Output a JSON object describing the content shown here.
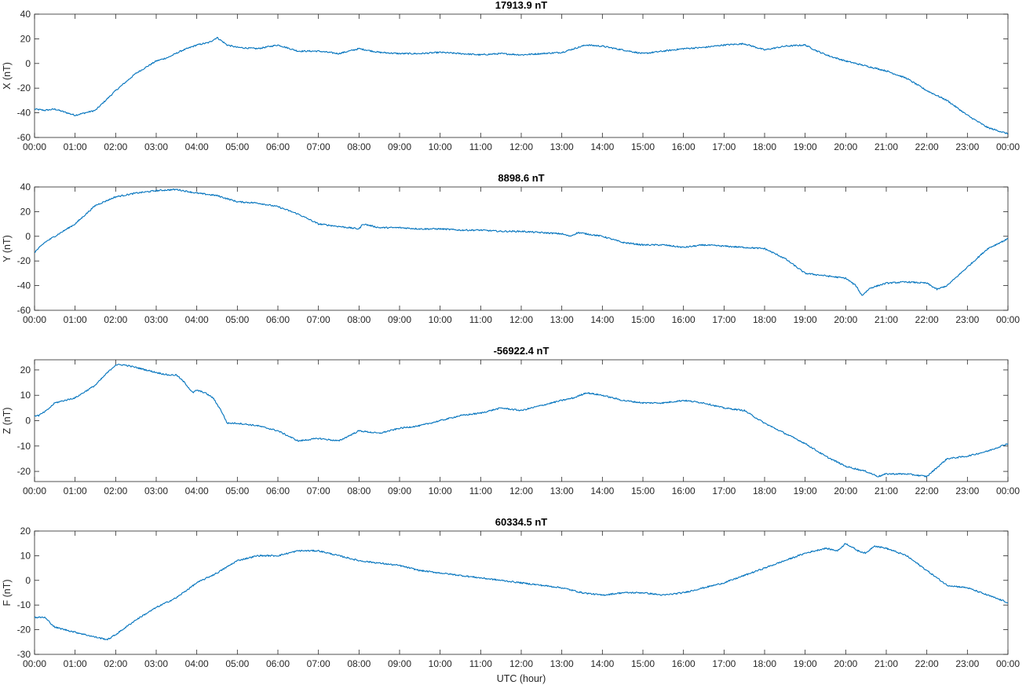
{
  "chart_data": [
    {
      "type": "line",
      "title": "17913.9 nT",
      "xlabel": "",
      "ylabel": "X (nT)",
      "ylim": [
        -60,
        40
      ],
      "yticks": [
        -60,
        -40,
        -20,
        0,
        20,
        40
      ],
      "xlim": [
        0,
        24
      ],
      "xticks": [
        "00:00",
        "01:00",
        "02:00",
        "03:00",
        "04:00",
        "05:00",
        "06:00",
        "07:00",
        "08:00",
        "09:00",
        "10:00",
        "11:00",
        "12:00",
        "13:00",
        "14:00",
        "15:00",
        "16:00",
        "17:00",
        "18:00",
        "19:00",
        "20:00",
        "21:00",
        "22:00",
        "23:00",
        "00:00"
      ],
      "grid": false,
      "color": "#0072BD",
      "series": [
        {
          "x": [
            0,
            0.25,
            0.5,
            1.0,
            1.5,
            2.0,
            2.5,
            3.0,
            3.3,
            3.6,
            4.0,
            4.3,
            4.5,
            4.75,
            5.0,
            5.5,
            6.0,
            6.5,
            7.0,
            7.5,
            8.0,
            8.5,
            9.0,
            9.5,
            10.0,
            10.5,
            11.0,
            11.5,
            12.0,
            12.5,
            13.0,
            13.3,
            13.6,
            14.0,
            14.5,
            15.0,
            15.5,
            16.0,
            16.5,
            17.0,
            17.5,
            18.0,
            18.5,
            19.0,
            19.3,
            19.6,
            20.0,
            20.5,
            21.0,
            21.5,
            22.0,
            22.5,
            23.0,
            23.5,
            24.0
          ],
          "y": [
            -37,
            -38,
            -37,
            -42,
            -38,
            -22,
            -8,
            2,
            5,
            10,
            15,
            17,
            21,
            15,
            13,
            12,
            15,
            10,
            10,
            8,
            12,
            9,
            8,
            8,
            9,
            8,
            7,
            8,
            7,
            8,
            9,
            12,
            15,
            14,
            11,
            8,
            10,
            12,
            13,
            15,
            16,
            11,
            14,
            15,
            10,
            6,
            2,
            -2,
            -6,
            -12,
            -22,
            -30,
            -42,
            -52,
            -57
          ]
        }
      ]
    },
    {
      "type": "line",
      "title": "8898.6 nT",
      "xlabel": "",
      "ylabel": "Y (nT)",
      "ylim": [
        -60,
        40
      ],
      "yticks": [
        -60,
        -40,
        -20,
        0,
        20,
        40
      ],
      "xlim": [
        0,
        24
      ],
      "xticks": [
        "00:00",
        "01:00",
        "02:00",
        "03:00",
        "04:00",
        "05:00",
        "06:00",
        "07:00",
        "08:00",
        "09:00",
        "10:00",
        "11:00",
        "12:00",
        "13:00",
        "14:00",
        "15:00",
        "16:00",
        "17:00",
        "18:00",
        "19:00",
        "20:00",
        "21:00",
        "22:00",
        "23:00",
        "00:00"
      ],
      "grid": false,
      "color": "#0072BD",
      "series": [
        {
          "x": [
            0,
            0.25,
            0.5,
            1.0,
            1.5,
            2.0,
            2.5,
            3.0,
            3.5,
            4.0,
            4.5,
            5.0,
            5.5,
            6.0,
            6.5,
            7.0,
            7.5,
            8.0,
            8.1,
            8.5,
            9.0,
            9.5,
            10.0,
            10.5,
            11.0,
            11.5,
            12.0,
            12.5,
            13.0,
            13.2,
            13.4,
            14.0,
            14.5,
            15.0,
            15.5,
            16.0,
            16.5,
            17.0,
            17.5,
            18.0,
            18.5,
            19.0,
            19.5,
            20.0,
            20.25,
            20.4,
            20.6,
            21.0,
            21.5,
            22.0,
            22.25,
            22.5,
            23.0,
            23.5,
            24.0
          ],
          "y": [
            -13,
            -5,
            0,
            10,
            25,
            32,
            35,
            37,
            38,
            35,
            33,
            28,
            27,
            24,
            18,
            10,
            8,
            6,
            10,
            7,
            7,
            6,
            6,
            5,
            5,
            4,
            4,
            3,
            2,
            0,
            3,
            0,
            -5,
            -7,
            -7,
            -9,
            -7,
            -8,
            -9,
            -10,
            -18,
            -30,
            -32,
            -34,
            -40,
            -48,
            -42,
            -38,
            -37,
            -38,
            -43,
            -40,
            -25,
            -10,
            -2
          ]
        }
      ]
    },
    {
      "type": "line",
      "title": "-56922.4 nT",
      "xlabel": "",
      "ylabel": "Z (nT)",
      "ylim": [
        -24,
        24
      ],
      "yticks": [
        -20,
        -10,
        0,
        10,
        20
      ],
      "xlim": [
        0,
        24
      ],
      "xticks": [
        "00:00",
        "01:00",
        "02:00",
        "03:00",
        "04:00",
        "05:00",
        "06:00",
        "07:00",
        "08:00",
        "09:00",
        "10:00",
        "11:00",
        "12:00",
        "13:00",
        "14:00",
        "15:00",
        "16:00",
        "17:00",
        "18:00",
        "19:00",
        "20:00",
        "21:00",
        "22:00",
        "23:00",
        "00:00"
      ],
      "grid": false,
      "color": "#0072BD",
      "series": [
        {
          "x": [
            0,
            0.1,
            0.3,
            0.5,
            1.0,
            1.5,
            1.8,
            2.0,
            2.2,
            2.5,
            3.0,
            3.3,
            3.5,
            3.7,
            3.9,
            4.0,
            4.2,
            4.4,
            4.6,
            4.75,
            5.0,
            5.5,
            6.0,
            6.5,
            7.0,
            7.5,
            8.0,
            8.5,
            9.0,
            9.5,
            10.0,
            10.5,
            11.0,
            11.5,
            12.0,
            12.5,
            13.0,
            13.3,
            13.6,
            14.0,
            14.5,
            15.0,
            15.5,
            16.0,
            16.5,
            17.0,
            17.5,
            18.0,
            18.5,
            19.0,
            19.5,
            20.0,
            20.5,
            20.8,
            21.0,
            21.5,
            22.0,
            22.5,
            23.0,
            23.5,
            24.0
          ],
          "y": [
            2,
            2,
            4,
            7,
            9,
            14,
            19,
            22,
            22,
            21,
            19,
            18,
            18,
            15,
            11,
            12,
            11,
            9,
            4,
            -1,
            -1,
            -2,
            -4,
            -8,
            -7,
            -8,
            -4,
            -5,
            -3,
            -2,
            0,
            2,
            3,
            5,
            4,
            6,
            8,
            9,
            11,
            10,
            8,
            7,
            7,
            8,
            7,
            5,
            4,
            -1,
            -5,
            -9,
            -14,
            -18,
            -20,
            -22,
            -21,
            -21,
            -22,
            -15,
            -14,
            -12,
            -9
          ]
        }
      ]
    },
    {
      "type": "line",
      "title": "60334.5 nT",
      "xlabel": "UTC (hour)",
      "ylabel": "F (nT)",
      "ylim": [
        -30,
        20
      ],
      "yticks": [
        -30,
        -20,
        -10,
        0,
        10,
        20
      ],
      "xlim": [
        0,
        24
      ],
      "xticks": [
        "00:00",
        "01:00",
        "02:00",
        "03:00",
        "04:00",
        "05:00",
        "06:00",
        "07:00",
        "08:00",
        "09:00",
        "10:00",
        "11:00",
        "12:00",
        "13:00",
        "14:00",
        "15:00",
        "16:00",
        "17:00",
        "18:00",
        "19:00",
        "20:00",
        "21:00",
        "22:00",
        "23:00",
        "00:00"
      ],
      "grid": false,
      "color": "#0072BD",
      "series": [
        {
          "x": [
            0,
            0.25,
            0.5,
            1.0,
            1.5,
            1.8,
            2.0,
            2.5,
            3.0,
            3.5,
            4.0,
            4.5,
            5.0,
            5.5,
            6.0,
            6.5,
            7.0,
            7.5,
            8.0,
            8.5,
            9.0,
            9.5,
            10.0,
            10.5,
            11.0,
            11.5,
            12.0,
            12.5,
            13.0,
            13.5,
            14.0,
            14.5,
            15.0,
            15.5,
            16.0,
            16.5,
            17.0,
            17.5,
            18.0,
            18.5,
            19.0,
            19.5,
            19.8,
            20.0,
            20.3,
            20.5,
            20.7,
            21.0,
            21.5,
            22.0,
            22.5,
            23.0,
            23.5,
            24.0
          ],
          "y": [
            -15,
            -15,
            -19,
            -21,
            -23,
            -24,
            -22,
            -16,
            -11,
            -7,
            -1,
            3,
            8,
            10,
            10,
            12,
            12,
            10,
            8,
            7,
            6,
            4,
            3,
            2,
            1,
            0,
            -1,
            -2,
            -3,
            -5,
            -6,
            -5,
            -5,
            -6,
            -5,
            -3,
            -1,
            2,
            5,
            8,
            11,
            13,
            12,
            15,
            12,
            11,
            14,
            13,
            10,
            4,
            -2,
            -3,
            -6,
            -9
          ]
        }
      ]
    }
  ]
}
